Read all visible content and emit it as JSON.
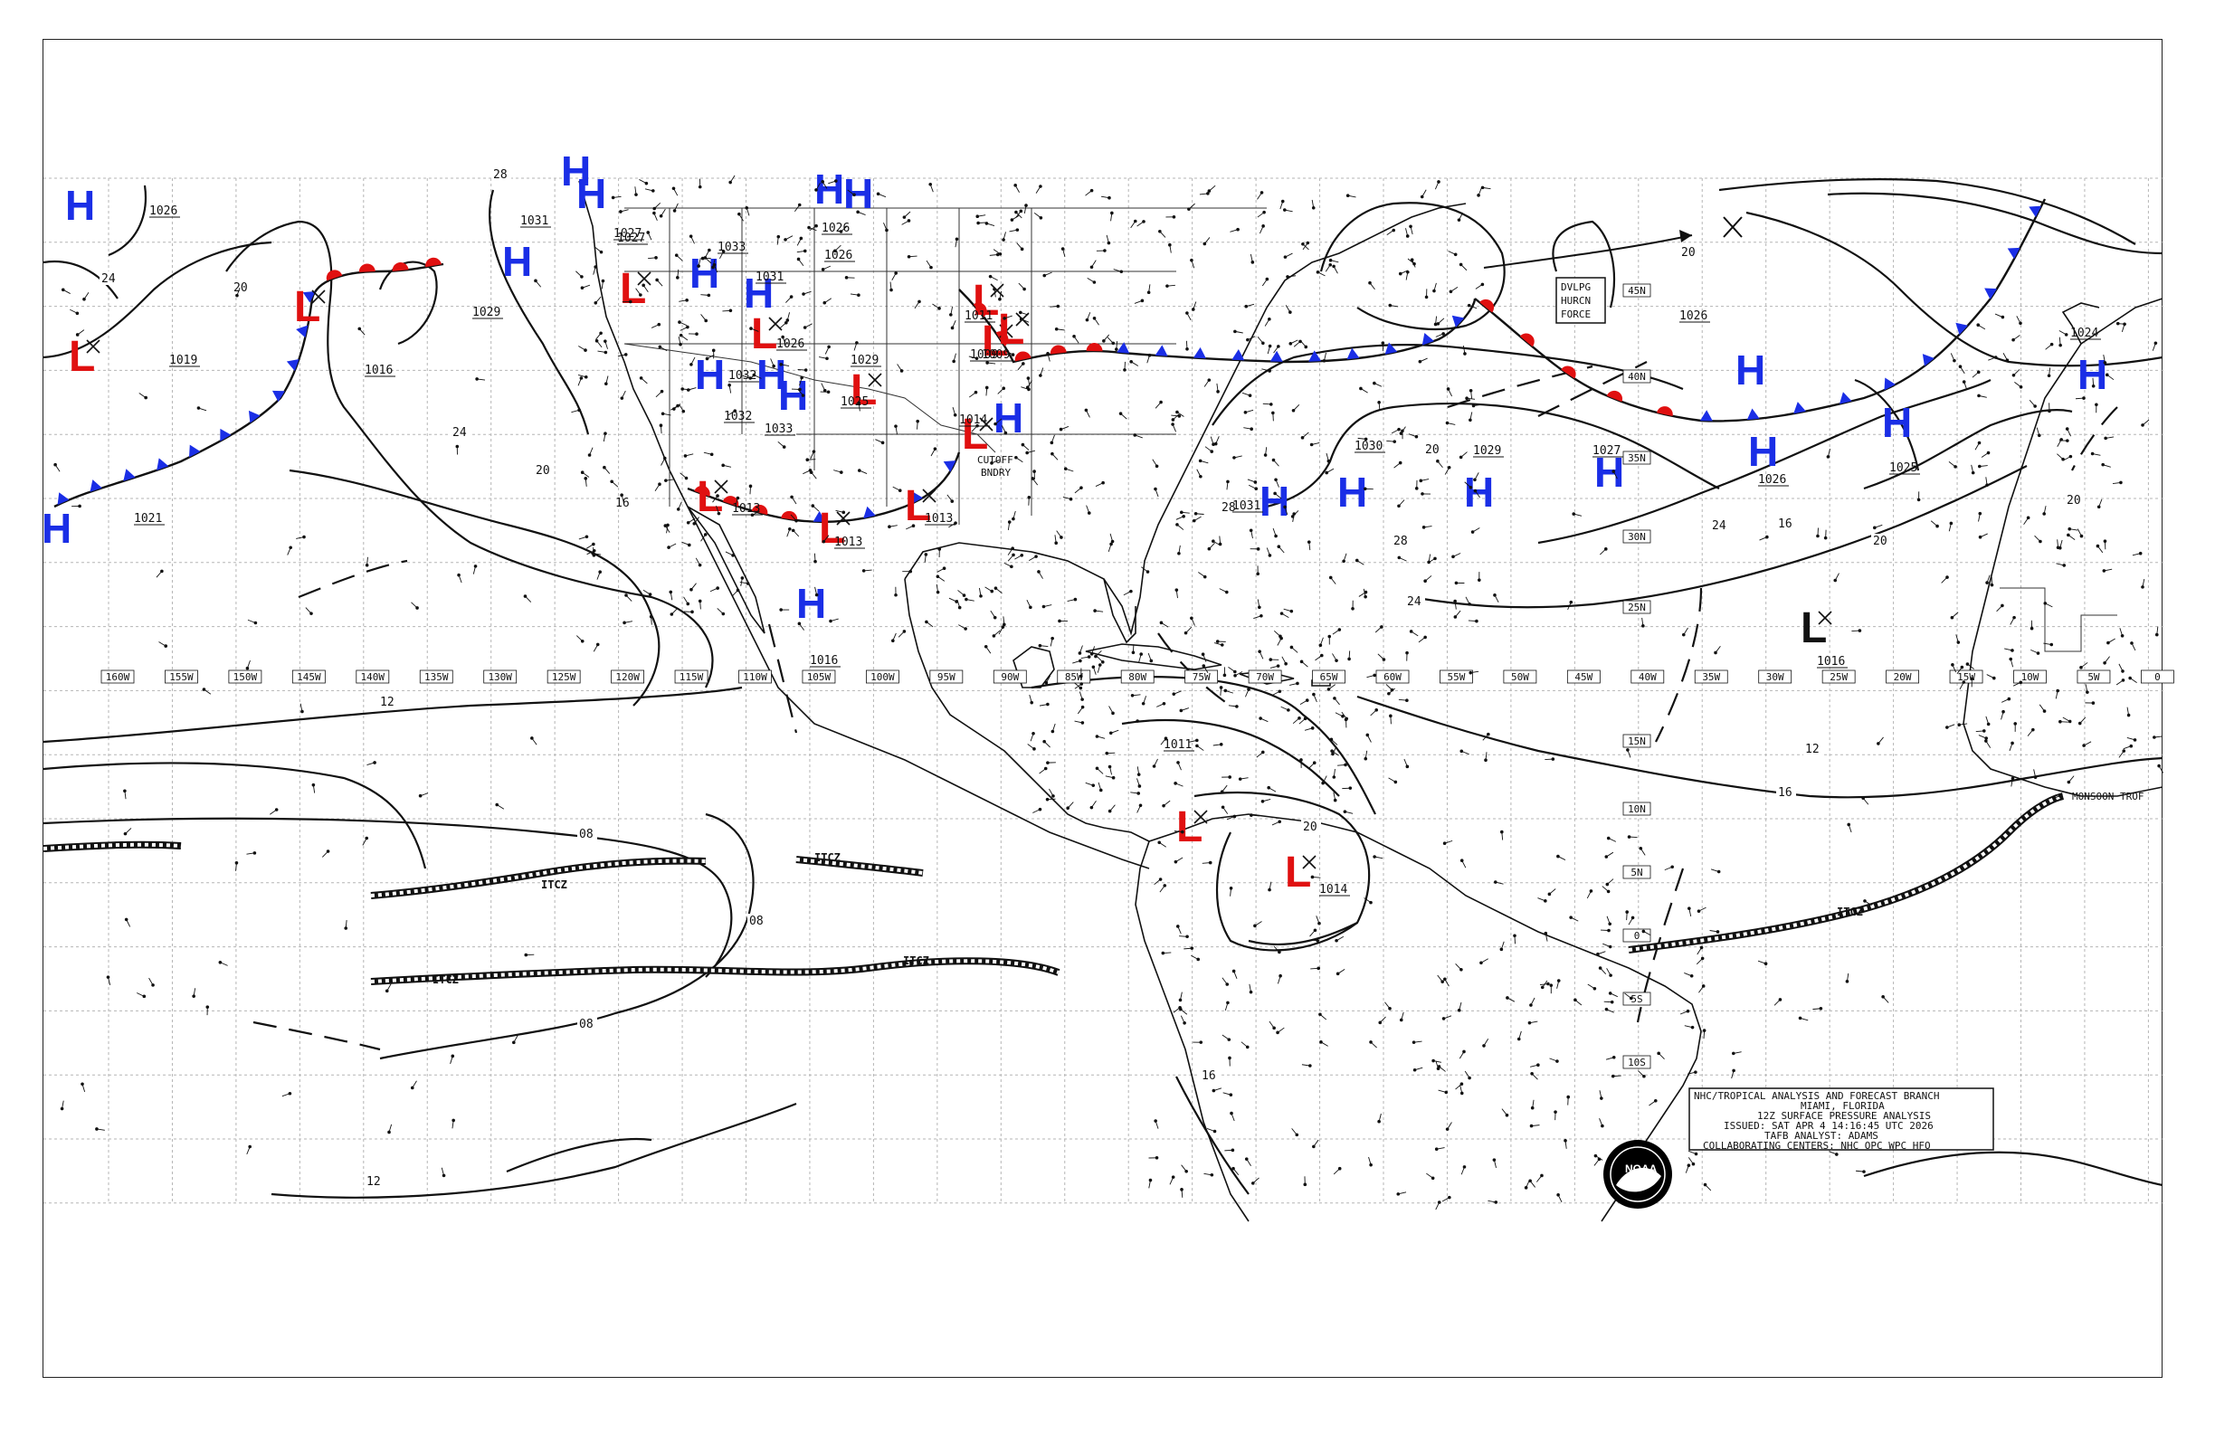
{
  "colors": {
    "high": "#1a2ee6",
    "low": "#e01010",
    "low_black": "#111111",
    "warm_front": "#e01010",
    "cold_front": "#1a2ee6"
  },
  "longitude_labels": [
    "160W",
    "155W",
    "150W",
    "145W",
    "140W",
    "135W",
    "130W",
    "125W",
    "120W",
    "115W",
    "110W",
    "105W",
    "100W",
    "95W",
    "90W",
    "85W",
    "80W",
    "75W",
    "70W",
    "65W",
    "60W",
    "55W",
    "50W",
    "45W",
    "40W",
    "35W",
    "30W",
    "25W",
    "20W",
    "15W",
    "10W",
    "5W",
    "0"
  ],
  "latitude_labels": [
    "45N",
    "40N",
    "35N",
    "30N",
    "25N",
    "15N",
    "10N",
    "5N",
    "0",
    "5S",
    "10S"
  ],
  "isobar_labels": [
    "28",
    "24",
    "20",
    "24",
    "20",
    "16",
    "12",
    "08",
    "08",
    "08",
    "12",
    "16",
    "20",
    "24",
    "28",
    "20",
    "16",
    "12",
    "16",
    "20",
    "24",
    "28",
    "20",
    "20"
  ],
  "centers": {
    "highs": [
      {
        "label": "H",
        "value": "1026"
      },
      {
        "label": "H",
        "value": "1031"
      },
      {
        "label": "H",
        "value": "1027"
      },
      {
        "label": "H",
        "value": "1033"
      },
      {
        "label": "H",
        "value": "1031"
      },
      {
        "label": "H",
        "value": "1026"
      },
      {
        "label": "H",
        "value": "1032"
      },
      {
        "label": "H",
        "value": "1032"
      },
      {
        "label": "H",
        "value": "1033"
      },
      {
        "label": "H",
        "value": "1026"
      },
      {
        "label": "H",
        "value": "1016"
      },
      {
        "label": "H",
        "value": "1031"
      },
      {
        "label": "H",
        "value": "1030"
      },
      {
        "label": "H",
        "value": "1029"
      },
      {
        "label": "H",
        "value": "1027"
      },
      {
        "label": "H",
        "value": "1026"
      },
      {
        "label": "H",
        "value": "1026"
      },
      {
        "label": "H",
        "value": "1025"
      },
      {
        "label": "H",
        "value": "1024"
      },
      {
        "label": "H",
        "value": "1029"
      },
      {
        "label": "H",
        "value": "1021"
      },
      {
        "label": "H",
        "value": "1029"
      }
    ],
    "lows": [
      {
        "label": "L",
        "value": "1019"
      },
      {
        "label": "L",
        "value": "1016"
      },
      {
        "label": "L",
        "value": "1027"
      },
      {
        "label": "L",
        "value": "1026"
      },
      {
        "label": "L",
        "value": "1025"
      },
      {
        "label": "L",
        "value": "1013"
      },
      {
        "label": "L",
        "value": "1013"
      },
      {
        "label": "L",
        "value": "1013"
      },
      {
        "label": "L",
        "value": "1011"
      },
      {
        "label": "L",
        "value": "1009"
      },
      {
        "label": "L",
        "value": "1014"
      },
      {
        "label": "L",
        "value": "1009"
      },
      {
        "label": "L",
        "value": "1011"
      },
      {
        "label": "L",
        "value": "1014"
      },
      {
        "label": "L",
        "value": "1016"
      }
    ]
  },
  "annotations": {
    "dvlpg": [
      "DVLPG",
      "HURCN",
      "FORCE"
    ],
    "cutoff": [
      "CUTOFF",
      "BNDRY"
    ],
    "monsoon": "MONSOON TROF",
    "itcz": [
      "ITCZ",
      "ITCZ",
      "ITCZ",
      "ITCZ",
      "ITCZ"
    ]
  },
  "info_box": {
    "lines": [
      "NHC/TROPICAL ANALYSIS AND FORECAST BRANCH",
      "MIAMI, FLORIDA",
      "12Z SURFACE PRESSURE ANALYSIS",
      "ISSUED: SAT APR 4 14:16:45 UTC 2026",
      "TAFB ANALYST: ADAMS",
      "COLLABORATING CENTERS: NHC OPC WPC HFO"
    ]
  },
  "logo": {
    "name": "noaa-logo",
    "text": "NOAA"
  }
}
